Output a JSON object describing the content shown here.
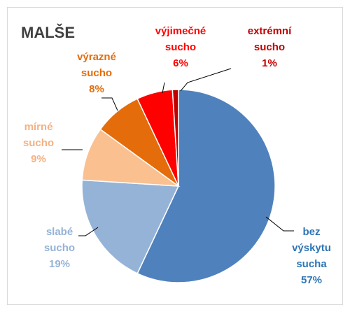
{
  "chart_data": {
    "type": "pie",
    "title": "MALŠE",
    "categories": [
      "bez výskytu sucha",
      "slabé sucho",
      "mírné sucho",
      "výrazné sucho",
      "výjimečné sucho",
      "extrémní sucho"
    ],
    "values": [
      57,
      19,
      9,
      8,
      6,
      1
    ],
    "value_labels": [
      "57%",
      "19%",
      "9%",
      "8%",
      "6%",
      "1%"
    ],
    "colors": [
      "#4f81bd",
      "#95b3d7",
      "#fac090",
      "#e46c0a",
      "#ff0000",
      "#c00000"
    ],
    "label_colors": [
      "#2e75b6",
      "#95b3d7",
      "#f4b183",
      "#e46c0a",
      "#ff0000",
      "#c00000"
    ]
  }
}
